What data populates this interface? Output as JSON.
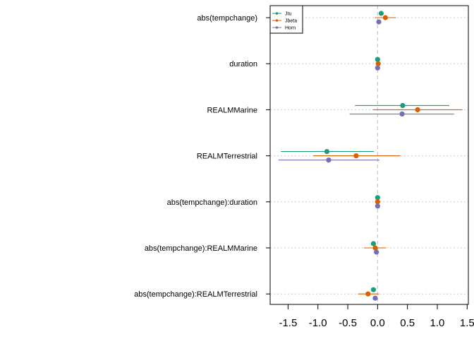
{
  "chart_data": {
    "type": "scatter",
    "subtype": "coefficient-plot-with-intervals",
    "title": "",
    "xlabel": "",
    "ylabel": "",
    "xlim": [
      -1.8,
      1.52
    ],
    "x_ticks": [
      -1.5,
      -1.0,
      -0.5,
      0.0,
      0.5,
      1.0,
      1.5
    ],
    "x_tick_labels": [
      "-1.5",
      "-1.0",
      "-0.5",
      "0.0",
      "0.5",
      "1.0",
      "1.5"
    ],
    "reference_line_x": 0,
    "grid": "horizontal dotted lines at each term",
    "legend_position": "top-left",
    "terms": [
      "abs(tempchange)",
      "duration",
      "REALMMarine",
      "REALMTerrestrial",
      "abs(tempchange):duration",
      "abs(tempchange):REALMMarine",
      "abs(tempchange):REALMTerrestrial"
    ],
    "series": [
      {
        "name": "Jtu",
        "color": "#1b9e77",
        "estimates": [
          0.06,
          0.0,
          0.42,
          -0.85,
          0.0,
          -0.07,
          -0.07
        ],
        "lower": [
          0.03,
          -0.02,
          -0.38,
          -1.62,
          -0.02,
          -0.1,
          -0.1
        ],
        "upper": [
          0.09,
          0.02,
          1.2,
          -0.06,
          0.02,
          -0.04,
          -0.04
        ]
      },
      {
        "name": "Jbeta",
        "color": "#d95f02",
        "estimates": [
          0.13,
          0.01,
          0.67,
          -0.36,
          0.0,
          -0.04,
          -0.16
        ],
        "lower": [
          -0.05,
          -0.01,
          -0.08,
          -1.08,
          -0.02,
          -0.23,
          -0.33
        ],
        "upper": [
          0.31,
          0.03,
          1.42,
          0.38,
          0.02,
          0.14,
          0.02
        ]
      },
      {
        "name": "Horn",
        "color": "#7570b3",
        "estimates": [
          0.02,
          0.0,
          0.41,
          -0.82,
          0.0,
          -0.02,
          -0.04
        ],
        "lower": [
          -0.01,
          -0.02,
          -0.47,
          -1.66,
          -0.02,
          -0.05,
          -0.07
        ],
        "upper": [
          0.05,
          0.02,
          1.28,
          0.03,
          0.02,
          0.01,
          -0.01
        ]
      }
    ]
  }
}
